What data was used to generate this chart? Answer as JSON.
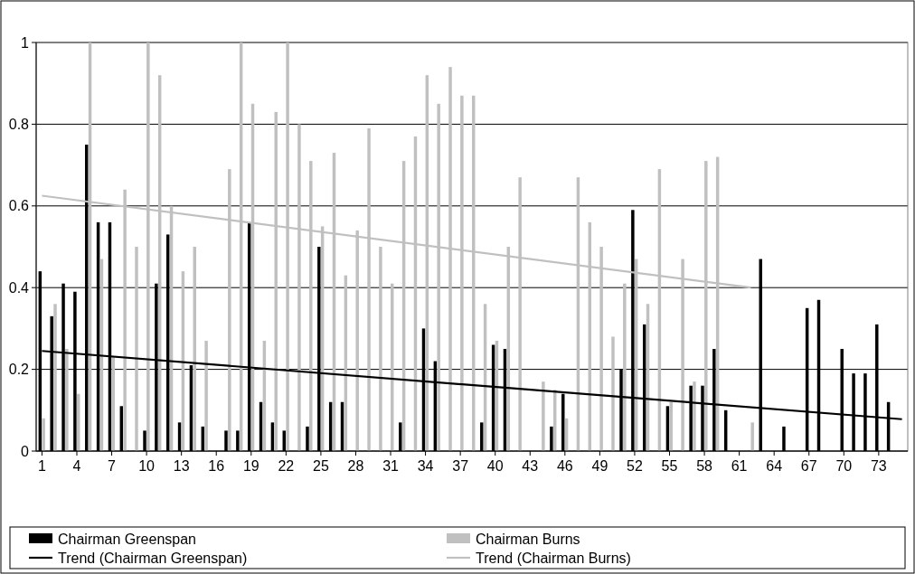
{
  "chart_data": {
    "type": "bar",
    "x": [
      1,
      2,
      3,
      4,
      5,
      6,
      7,
      8,
      9,
      10,
      11,
      12,
      13,
      14,
      15,
      16,
      17,
      18,
      19,
      20,
      21,
      22,
      23,
      24,
      25,
      26,
      27,
      28,
      29,
      30,
      31,
      32,
      33,
      34,
      35,
      36,
      37,
      38,
      39,
      40,
      41,
      42,
      43,
      44,
      45,
      46,
      47,
      48,
      49,
      50,
      51,
      52,
      53,
      54,
      55,
      56,
      57,
      58,
      59,
      60,
      61,
      62,
      63,
      64,
      65,
      66,
      67,
      68,
      69,
      70,
      71,
      72,
      73,
      74,
      75
    ],
    "series": [
      {
        "name": "Chairman Greenspan",
        "color": "#000000",
        "values": [
          0.44,
          0.33,
          0.41,
          0.39,
          0.75,
          0.56,
          0.56,
          0.11,
          0,
          0.05,
          0.41,
          0.53,
          0.07,
          0.21,
          0.06,
          0,
          0.05,
          0.05,
          0.56,
          0.12,
          0.07,
          0.05,
          0,
          0.06,
          0.5,
          0.12,
          0.12,
          0,
          0,
          0,
          0,
          0.07,
          0,
          0.3,
          0.22,
          0,
          0,
          0,
          0.07,
          0.26,
          0.25,
          0,
          0,
          0,
          0.06,
          0.14,
          0,
          0,
          0,
          0,
          0.2,
          0.59,
          0.31,
          0,
          0.11,
          0,
          0.16,
          0.16,
          0.25,
          0.1,
          0,
          0,
          0.47,
          0,
          0.06,
          0,
          0.35,
          0.37,
          0,
          0.25,
          0.19,
          0.19,
          0.31,
          0.12,
          0
        ]
      },
      {
        "name": "Chairman Burns",
        "color": "#c0c0c0",
        "values": [
          0.08,
          0.36,
          0.25,
          0.14,
          1,
          0.47,
          0.23,
          0.64,
          0.5,
          1,
          0.92,
          0.6,
          0.44,
          0.5,
          0.27,
          0,
          0.69,
          1,
          0.85,
          0.27,
          0.83,
          1,
          0.8,
          0.71,
          0.55,
          0.73,
          0.43,
          0.54,
          0.79,
          0.5,
          0.41,
          0.71,
          0.77,
          0.92,
          0.85,
          0.94,
          0.87,
          0.87,
          0.36,
          0.27,
          0.5,
          0.67,
          0,
          0.17,
          0.15,
          0.08,
          0.67,
          0.56,
          0.5,
          0.28,
          0.41,
          0.47,
          0.36,
          0.69,
          0.12,
          0.47,
          0.17,
          0.71,
          0.72,
          0,
          0,
          0.07,
          0,
          0,
          0,
          0,
          0,
          0,
          0,
          0,
          0,
          0,
          0,
          0,
          0
        ]
      },
      {
        "name": "Trend (Chairman Greenspan)",
        "type": "line",
        "color": "#000000",
        "x": [
          1,
          75
        ],
        "values": [
          0.245,
          0.078
        ]
      },
      {
        "name": "Trend (Chairman Burns)",
        "type": "line",
        "color": "#c0c0c0",
        "x": [
          1,
          62
        ],
        "values": [
          0.625,
          0.4
        ]
      }
    ],
    "xlim": [
      0.5,
      75.5
    ],
    "xticks": [
      1,
      4,
      7,
      10,
      13,
      16,
      19,
      22,
      25,
      28,
      31,
      34,
      37,
      40,
      43,
      46,
      49,
      52,
      55,
      58,
      61,
      64,
      67,
      70,
      73
    ],
    "ylim": [
      0,
      1
    ],
    "yticks": [
      0,
      0.2,
      0.4,
      0.6,
      0.8,
      1
    ],
    "grid": "y",
    "legend": "bottom"
  }
}
